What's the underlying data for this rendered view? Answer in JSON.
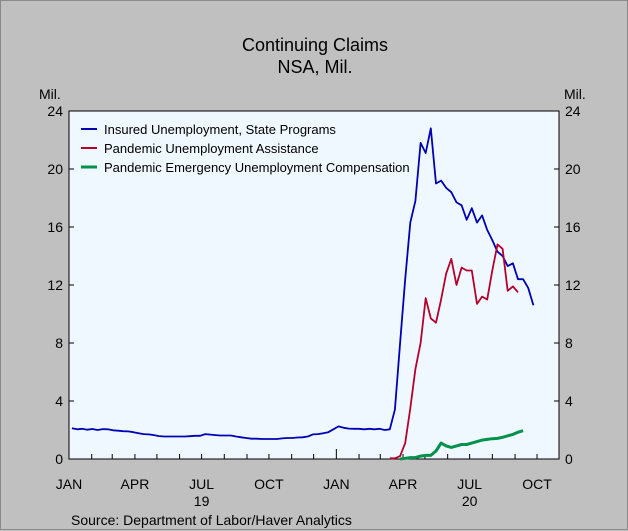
{
  "chart_data": {
    "type": "line",
    "title": "Continuing Claims",
    "subtitle": "NSA, Mil.",
    "unit_left": "Mil.",
    "unit_right": "Mil.",
    "source": "Source:  Department of Labor/Haver Analytics",
    "ylim": [
      0,
      24
    ],
    "y_ticks": [
      "0",
      "4",
      "8",
      "12",
      "16",
      "20",
      "24"
    ],
    "xlim": [
      "2019-01-01",
      "2020-10-31"
    ],
    "x_ticks": [
      {
        "label": "JAN",
        "date": "2019-01-01"
      },
      {
        "label": "APR",
        "date": "2019-04-01"
      },
      {
        "label": "JUL",
        "date": "2019-07-01"
      },
      {
        "label": "OCT",
        "date": "2019-10-01"
      },
      {
        "label": "JAN",
        "date": "2020-01-01"
      },
      {
        "label": "APR",
        "date": "2020-04-01"
      },
      {
        "label": "JUL",
        "date": "2020-07-01"
      },
      {
        "label": "OCT",
        "date": "2020-10-01"
      }
    ],
    "year_labels": [
      {
        "label": "19",
        "date": "2019-07-01"
      },
      {
        "label": "20",
        "date": "2020-07-01"
      }
    ],
    "grid": false,
    "legend_position": "top-left",
    "plot_background": "#f0f8ff",
    "series": [
      {
        "name": "Insured Unemployment, State Programs",
        "color": "#0000b4",
        "points": [
          [
            "2019-01-05",
            2.12
          ],
          [
            "2019-01-12",
            2.05
          ],
          [
            "2019-01-19",
            2.08
          ],
          [
            "2019-01-26",
            2.02
          ],
          [
            "2019-02-02",
            2.07
          ],
          [
            "2019-02-09",
            2.0
          ],
          [
            "2019-02-16",
            2.06
          ],
          [
            "2019-02-23",
            2.05
          ],
          [
            "2019-03-02",
            1.98
          ],
          [
            "2019-03-09",
            1.95
          ],
          [
            "2019-03-16",
            1.92
          ],
          [
            "2019-03-23",
            1.9
          ],
          [
            "2019-03-30",
            1.85
          ],
          [
            "2019-04-06",
            1.78
          ],
          [
            "2019-04-13",
            1.72
          ],
          [
            "2019-04-20",
            1.7
          ],
          [
            "2019-04-27",
            1.65
          ],
          [
            "2019-05-04",
            1.58
          ],
          [
            "2019-05-11",
            1.55
          ],
          [
            "2019-05-18",
            1.55
          ],
          [
            "2019-05-25",
            1.55
          ],
          [
            "2019-06-01",
            1.55
          ],
          [
            "2019-06-08",
            1.55
          ],
          [
            "2019-06-15",
            1.57
          ],
          [
            "2019-06-22",
            1.6
          ],
          [
            "2019-06-29",
            1.6
          ],
          [
            "2019-07-06",
            1.72
          ],
          [
            "2019-07-13",
            1.68
          ],
          [
            "2019-07-20",
            1.65
          ],
          [
            "2019-07-27",
            1.62
          ],
          [
            "2019-08-03",
            1.62
          ],
          [
            "2019-08-10",
            1.62
          ],
          [
            "2019-08-17",
            1.55
          ],
          [
            "2019-08-24",
            1.5
          ],
          [
            "2019-08-31",
            1.45
          ],
          [
            "2019-09-07",
            1.4
          ],
          [
            "2019-09-14",
            1.4
          ],
          [
            "2019-09-21",
            1.38
          ],
          [
            "2019-09-28",
            1.38
          ],
          [
            "2019-10-05",
            1.38
          ],
          [
            "2019-10-12",
            1.38
          ],
          [
            "2019-10-19",
            1.42
          ],
          [
            "2019-10-26",
            1.45
          ],
          [
            "2019-11-02",
            1.45
          ],
          [
            "2019-11-09",
            1.48
          ],
          [
            "2019-11-16",
            1.5
          ],
          [
            "2019-11-23",
            1.55
          ],
          [
            "2019-11-30",
            1.7
          ],
          [
            "2019-12-07",
            1.72
          ],
          [
            "2019-12-14",
            1.78
          ],
          [
            "2019-12-21",
            1.85
          ],
          [
            "2019-12-28",
            2.05
          ],
          [
            "2020-01-04",
            2.25
          ],
          [
            "2020-01-11",
            2.15
          ],
          [
            "2020-01-18",
            2.1
          ],
          [
            "2020-01-25",
            2.08
          ],
          [
            "2020-02-01",
            2.08
          ],
          [
            "2020-02-08",
            2.05
          ],
          [
            "2020-02-15",
            2.08
          ],
          [
            "2020-02-22",
            2.05
          ],
          [
            "2020-02-29",
            2.08
          ],
          [
            "2020-03-07",
            2.0
          ],
          [
            "2020-03-14",
            2.05
          ],
          [
            "2020-03-21",
            3.4
          ],
          [
            "2020-03-28",
            8.0
          ],
          [
            "2020-04-04",
            12.4
          ],
          [
            "2020-04-11",
            16.3
          ],
          [
            "2020-04-18",
            17.8
          ],
          [
            "2020-04-25",
            21.8
          ],
          [
            "2020-05-02",
            21.1
          ],
          [
            "2020-05-09",
            22.8
          ],
          [
            "2020-05-16",
            19.0
          ],
          [
            "2020-05-23",
            19.2
          ],
          [
            "2020-05-30",
            18.7
          ],
          [
            "2020-06-06",
            18.4
          ],
          [
            "2020-06-13",
            17.7
          ],
          [
            "2020-06-20",
            17.5
          ],
          [
            "2020-06-27",
            16.5
          ],
          [
            "2020-07-04",
            17.3
          ],
          [
            "2020-07-11",
            16.3
          ],
          [
            "2020-07-18",
            16.8
          ],
          [
            "2020-07-25",
            15.8
          ],
          [
            "2020-08-01",
            15.1
          ],
          [
            "2020-08-08",
            14.3
          ],
          [
            "2020-08-15",
            14.0
          ],
          [
            "2020-08-22",
            13.3
          ],
          [
            "2020-08-29",
            13.5
          ],
          [
            "2020-09-05",
            12.4
          ],
          [
            "2020-09-12",
            12.4
          ],
          [
            "2020-09-19",
            11.8
          ],
          [
            "2020-09-26",
            10.6
          ]
        ]
      },
      {
        "name": "Pandemic Unemployment Assistance",
        "color": "#b4002d",
        "points": [
          [
            "2020-03-14",
            0.05
          ],
          [
            "2020-03-21",
            0.05
          ],
          [
            "2020-03-28",
            0.2
          ],
          [
            "2020-04-04",
            1.1
          ],
          [
            "2020-04-11",
            3.5
          ],
          [
            "2020-04-18",
            6.2
          ],
          [
            "2020-04-25",
            8.0
          ],
          [
            "2020-05-02",
            11.1
          ],
          [
            "2020-05-09",
            9.7
          ],
          [
            "2020-05-16",
            9.4
          ],
          [
            "2020-05-23",
            11.0
          ],
          [
            "2020-05-30",
            12.8
          ],
          [
            "2020-06-06",
            13.8
          ],
          [
            "2020-06-13",
            12.0
          ],
          [
            "2020-06-20",
            13.2
          ],
          [
            "2020-06-27",
            13.0
          ],
          [
            "2020-07-04",
            13.0
          ],
          [
            "2020-07-11",
            10.7
          ],
          [
            "2020-07-18",
            11.2
          ],
          [
            "2020-07-25",
            11.0
          ],
          [
            "2020-08-01",
            13.0
          ],
          [
            "2020-08-08",
            14.8
          ],
          [
            "2020-08-15",
            14.5
          ],
          [
            "2020-08-22",
            11.6
          ],
          [
            "2020-08-29",
            11.9
          ],
          [
            "2020-09-05",
            11.5
          ]
        ]
      },
      {
        "name": "Pandemic Emergency Unemployment Compensation",
        "color": "#00914b",
        "points": [
          [
            "2020-03-28",
            0.0
          ],
          [
            "2020-04-04",
            0.05
          ],
          [
            "2020-04-11",
            0.1
          ],
          [
            "2020-04-18",
            0.1
          ],
          [
            "2020-04-25",
            0.2
          ],
          [
            "2020-05-02",
            0.25
          ],
          [
            "2020-05-09",
            0.25
          ],
          [
            "2020-05-16",
            0.55
          ],
          [
            "2020-05-23",
            1.1
          ],
          [
            "2020-05-30",
            0.9
          ],
          [
            "2020-06-06",
            0.8
          ],
          [
            "2020-06-13",
            0.9
          ],
          [
            "2020-06-20",
            1.0
          ],
          [
            "2020-06-27",
            1.0
          ],
          [
            "2020-07-04",
            1.1
          ],
          [
            "2020-07-11",
            1.2
          ],
          [
            "2020-07-18",
            1.3
          ],
          [
            "2020-07-25",
            1.35
          ],
          [
            "2020-08-01",
            1.4
          ],
          [
            "2020-08-08",
            1.42
          ],
          [
            "2020-08-15",
            1.5
          ],
          [
            "2020-08-22",
            1.6
          ],
          [
            "2020-08-29",
            1.7
          ],
          [
            "2020-09-05",
            1.85
          ],
          [
            "2020-09-12",
            1.95
          ]
        ]
      }
    ]
  }
}
